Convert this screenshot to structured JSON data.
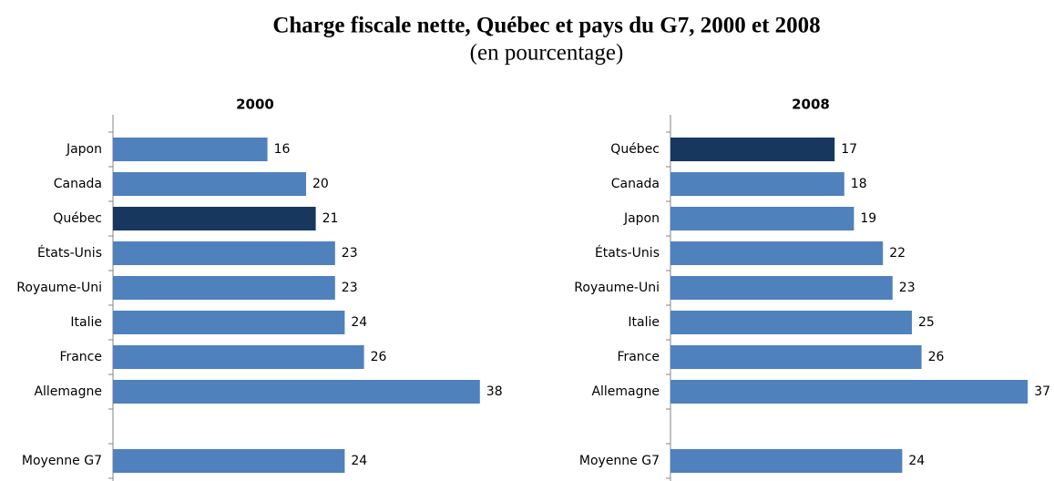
{
  "header": {
    "title": "Charge fiscale nette, Québec et pays du G7, 2000 et 2008",
    "subtitle": "(en pourcentage)"
  },
  "chart_data": [
    {
      "type": "bar",
      "orientation": "horizontal",
      "title": "2000",
      "categories": [
        "Japon",
        "Canada",
        "Québec",
        "États-Unis",
        "Royaume-Uni",
        "Italie",
        "France",
        "Allemagne",
        null,
        "Moyenne G7"
      ],
      "values": [
        16,
        20,
        21,
        23,
        23,
        24,
        26,
        38,
        null,
        24
      ],
      "colors": [
        "#4f81bd",
        "#4f81bd",
        "#17375e",
        "#4f81bd",
        "#4f81bd",
        "#4f81bd",
        "#4f81bd",
        "#4f81bd",
        null,
        "#4f81bd"
      ]
    },
    {
      "type": "bar",
      "orientation": "horizontal",
      "title": "2008",
      "categories": [
        "Québec",
        "Canada",
        "Japon",
        "États-Unis",
        "Royaume-Uni",
        "Italie",
        "France",
        "Allemagne",
        null,
        "Moyenne G7"
      ],
      "values": [
        17,
        18,
        19,
        22,
        23,
        25,
        26,
        37,
        null,
        24
      ],
      "colors": [
        "#17375e",
        "#4f81bd",
        "#4f81bd",
        "#4f81bd",
        "#4f81bd",
        "#4f81bd",
        "#4f81bd",
        "#4f81bd",
        null,
        "#4f81bd"
      ]
    }
  ]
}
